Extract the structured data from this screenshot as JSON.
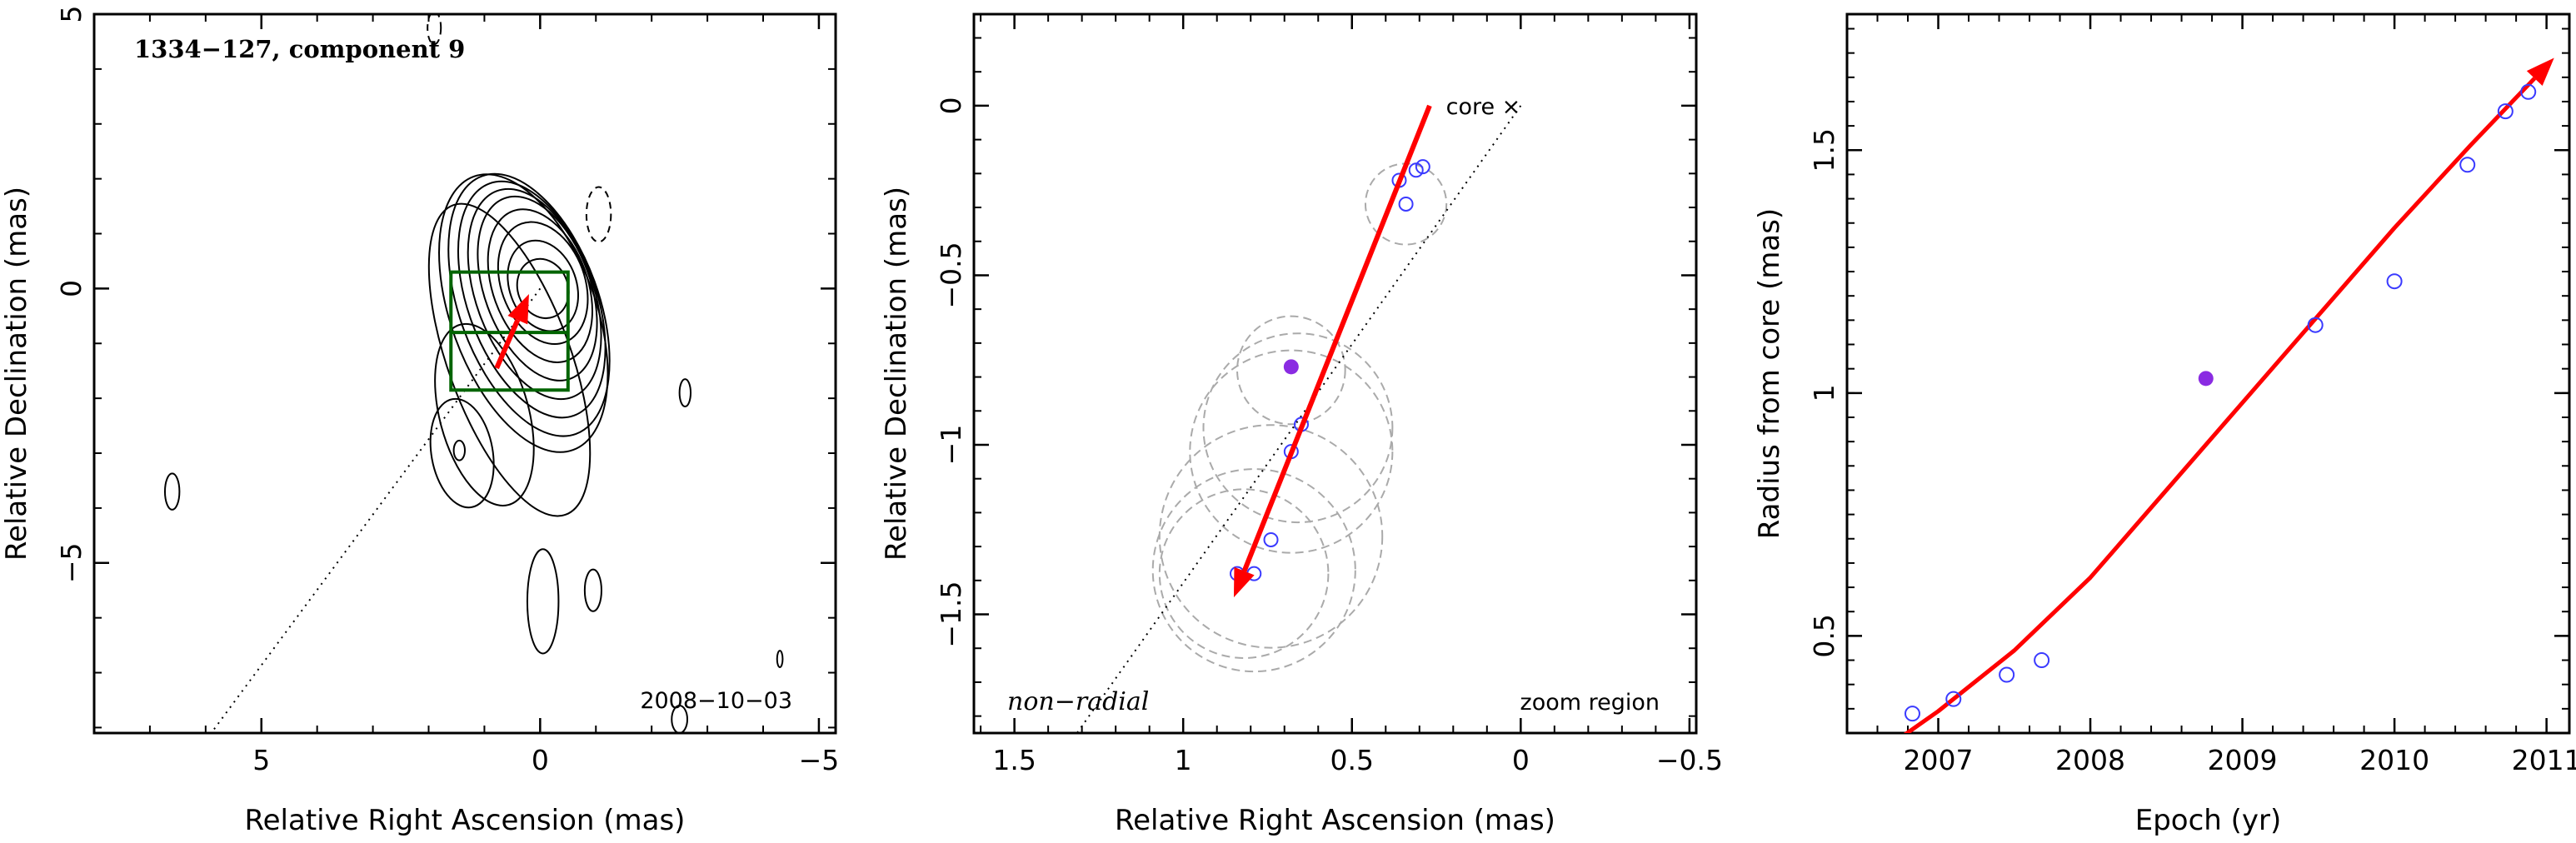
{
  "colors": {
    "arrow": "#ff0000",
    "fit_curve": "#ff0000",
    "open_points": "#3a3aff",
    "filled_point": "#8a2be2",
    "box": "#006400",
    "dashed_circles": "#aaaaaa",
    "contours": "#000000"
  },
  "chart_data": [
    {
      "type": "contour",
      "title": "1334−127, component 9",
      "date_label": "2008−10−03",
      "xlabel": "Relative Right Ascension (mas)",
      "ylabel": "Relative Declination (mas)",
      "xlim": [
        8.0,
        -5.3
      ],
      "ylim": [
        -8.1,
        5.0
      ],
      "xticks": [
        {
          "v": 5,
          "t": "5"
        },
        {
          "v": 0,
          "t": "0"
        },
        {
          "v": -5,
          "t": "−5"
        }
      ],
      "yticks": [
        {
          "v": 5,
          "t": "5"
        },
        {
          "v": 0,
          "t": "0"
        },
        {
          "v": -5,
          "t": "−5"
        }
      ],
      "jet_axis": [
        [
          0,
          0
        ],
        [
          5.9,
          -8.1
        ]
      ],
      "zoom_box": {
        "ra": [
          1.6,
          -0.5
        ],
        "dec": [
          -1.85,
          0.3
        ],
        "divider_dec": -0.8
      },
      "arrow": {
        "from": [
          0.78,
          -1.45
        ],
        "to": [
          0.2,
          -0.1
        ]
      },
      "contours": [
        {
          "cx": -0.05,
          "cy": 0.0,
          "rx": 0.45,
          "ry": 0.55,
          "rot": -20
        },
        {
          "cx": -0.05,
          "cy": 0.05,
          "rx": 0.6,
          "ry": 0.85,
          "rot": -20
        },
        {
          "cx": -0.05,
          "cy": 0.1,
          "rx": 0.75,
          "ry": 1.15,
          "rot": -20
        },
        {
          "cx": 0.0,
          "cy": 0.05,
          "rx": 0.85,
          "ry": 1.45,
          "rot": -20
        },
        {
          "cx": 0.05,
          "cy": 0.0,
          "rx": 0.95,
          "ry": 1.75,
          "rot": -20
        },
        {
          "cx": 0.1,
          "cy": -0.1,
          "rx": 1.05,
          "ry": 2.0,
          "rot": -20
        },
        {
          "cx": 0.15,
          "cy": -0.2,
          "rx": 1.15,
          "ry": 2.25,
          "rot": -20
        },
        {
          "cx": 0.2,
          "cy": -0.3,
          "rx": 1.25,
          "ry": 2.5,
          "rot": -20
        },
        {
          "cx": 0.3,
          "cy": -0.45,
          "rx": 1.3,
          "ry": 2.65,
          "rot": -20
        },
        {
          "cx": 0.55,
          "cy": -1.3,
          "rx": 1.1,
          "ry": 3.0,
          "rot": -20
        },
        {
          "cx": 1.0,
          "cy": -2.3,
          "rx": 0.8,
          "ry": 1.7,
          "rot": -15
        },
        {
          "cx": 1.4,
          "cy": -3.0,
          "rx": 0.55,
          "ry": 1.0,
          "rot": -10
        },
        {
          "cx": 1.45,
          "cy": -2.95,
          "rx": 0.1,
          "ry": 0.18,
          "rot": 0
        },
        {
          "cx": 6.6,
          "cy": -3.7,
          "rx": 0.13,
          "ry": 0.33,
          "rot": 0
        },
        {
          "cx": -2.6,
          "cy": -1.9,
          "rx": 0.1,
          "ry": 0.25,
          "rot": 0
        },
        {
          "cx": -0.05,
          "cy": -5.7,
          "rx": 0.28,
          "ry": 0.95,
          "rot": 0
        },
        {
          "cx": -0.95,
          "cy": -5.5,
          "rx": 0.15,
          "ry": 0.38,
          "rot": 0
        },
        {
          "cx": -2.5,
          "cy": -7.85,
          "rx": 0.14,
          "ry": 0.25,
          "rot": 0
        },
        {
          "cx": -4.3,
          "cy": -6.75,
          "rx": 0.05,
          "ry": 0.15,
          "rot": 0
        }
      ],
      "dashed_contours": [
        {
          "cx": -1.05,
          "cy": 1.35,
          "rx": 0.22,
          "ry": 0.5,
          "rot": 0
        },
        {
          "cx": 1.9,
          "cy": 4.75,
          "rx": 0.12,
          "ry": 0.3,
          "rot": 0
        }
      ]
    },
    {
      "type": "scatter",
      "xlabel": "Relative Right Ascension (mas)",
      "ylabel": "Relative Declination (mas)",
      "xlim": [
        1.62,
        -0.52
      ],
      "ylim": [
        -1.85,
        0.27
      ],
      "xticks": [
        {
          "v": 1.5,
          "t": "1.5"
        },
        {
          "v": 1,
          "t": "1"
        },
        {
          "v": 0.5,
          "t": "0.5"
        },
        {
          "v": 0,
          "t": "0"
        },
        {
          "v": -0.5,
          "t": "−0.5"
        }
      ],
      "yticks": [
        {
          "v": 0,
          "t": "0"
        },
        {
          "v": -0.5,
          "t": "−0.5"
        },
        {
          "v": -1,
          "t": "−1"
        },
        {
          "v": -1.5,
          "t": "−1.5"
        }
      ],
      "core_label": "core ×",
      "label_left": "non−radial",
      "label_right": "zoom region",
      "jet_axis": [
        [
          0,
          0
        ],
        [
          1.35,
          -1.9
        ]
      ],
      "arrow": {
        "from": [
          0.27,
          0.0
        ],
        "to": [
          0.85,
          -1.45
        ]
      },
      "points": [
        {
          "x": 0.29,
          "y": -0.18
        },
        {
          "x": 0.31,
          "y": -0.19
        },
        {
          "x": 0.36,
          "y": -0.22
        },
        {
          "x": 0.34,
          "y": -0.29
        },
        {
          "x": 0.65,
          "y": -0.94
        },
        {
          "x": 0.68,
          "y": -1.02
        },
        {
          "x": 0.74,
          "y": -1.28
        },
        {
          "x": 0.79,
          "y": -1.38
        },
        {
          "x": 0.84,
          "y": -1.38
        }
      ],
      "filled_points": [
        {
          "x": 0.68,
          "y": -0.77
        }
      ],
      "circles": [
        {
          "x": 0.34,
          "y": -0.29,
          "r": 0.12
        },
        {
          "x": 0.68,
          "y": -0.78,
          "r": 0.16
        },
        {
          "x": 0.66,
          "y": -0.95,
          "r": 0.28
        },
        {
          "x": 0.68,
          "y": -1.02,
          "r": 0.3
        },
        {
          "x": 0.74,
          "y": -1.27,
          "r": 0.33
        },
        {
          "x": 0.79,
          "y": -1.37,
          "r": 0.3
        },
        {
          "x": 0.82,
          "y": -1.38,
          "r": 0.25
        }
      ]
    },
    {
      "type": "scatter",
      "xlabel": "Epoch (yr)",
      "ylabel": "Radius from core (mas)",
      "xlim": [
        2006.4,
        2011.15
      ],
      "ylim": [
        0.3,
        1.78
      ],
      "xticks": [
        {
          "v": 2007,
          "t": "2007"
        },
        {
          "v": 2008,
          "t": "2008"
        },
        {
          "v": 2009,
          "t": "2009"
        },
        {
          "v": 2010,
          "t": "2010"
        },
        {
          "v": 2011,
          "t": "2011"
        }
      ],
      "yticks": [
        {
          "v": 0.5,
          "t": "0.5"
        },
        {
          "v": 1,
          "t": "1"
        },
        {
          "v": 1.5,
          "t": "1.5"
        }
      ],
      "points": [
        {
          "x": 2006.83,
          "y": 0.34
        },
        {
          "x": 2007.1,
          "y": 0.37
        },
        {
          "x": 2007.45,
          "y": 0.42
        },
        {
          "x": 2007.68,
          "y": 0.45
        },
        {
          "x": 2009.48,
          "y": 1.14
        },
        {
          "x": 2010.0,
          "y": 1.23
        },
        {
          "x": 2010.48,
          "y": 1.47
        },
        {
          "x": 2010.73,
          "y": 1.58
        },
        {
          "x": 2010.88,
          "y": 1.62
        }
      ],
      "filled_points": [
        {
          "x": 2008.76,
          "y": 1.03
        }
      ],
      "fit_curve": [
        {
          "x": 2006.75,
          "y": 0.29
        },
        {
          "x": 2007.0,
          "y": 0.345
        },
        {
          "x": 2007.5,
          "y": 0.47
        },
        {
          "x": 2008.0,
          "y": 0.62
        },
        {
          "x": 2008.5,
          "y": 0.8
        },
        {
          "x": 2009.0,
          "y": 0.98
        },
        {
          "x": 2009.5,
          "y": 1.16
        },
        {
          "x": 2010.0,
          "y": 1.34
        },
        {
          "x": 2010.5,
          "y": 1.51
        },
        {
          "x": 2011.05,
          "y": 1.69
        }
      ]
    }
  ]
}
